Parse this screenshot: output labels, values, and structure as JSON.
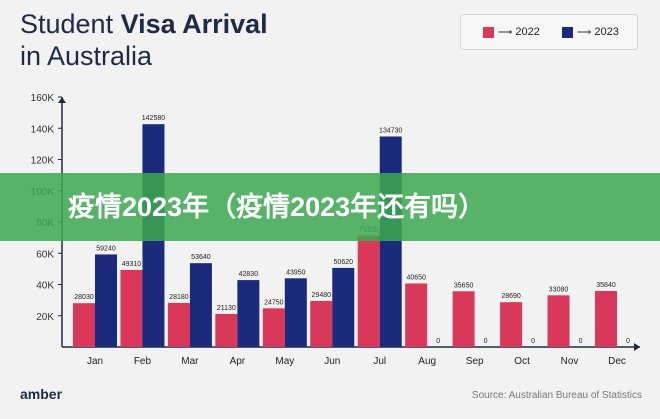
{
  "title": {
    "line1_regular": "Student ",
    "line1_bold": "Visa Arrival",
    "line2": "in Australia"
  },
  "legend": [
    {
      "label": "2022",
      "color": "#d9385b"
    },
    {
      "label": "2023",
      "color": "#1b2a7a"
    }
  ],
  "banner": {
    "text": "疫情2023年（疫情2023年还有吗）"
  },
  "footer": {
    "logo": "amber",
    "source": "Source: Australian Bureau of Statistics"
  },
  "chart_data": {
    "type": "bar",
    "categories": [
      "Jan",
      "Feb",
      "Mar",
      "Apr",
      "May",
      "Jun",
      "Jul",
      "Aug",
      "Sep",
      "Oct",
      "Nov",
      "Dec"
    ],
    "series": [
      {
        "name": "2022",
        "color": "#d9385b",
        "values": [
          28030,
          49310,
          28180,
          21130,
          24750,
          29480,
          71220,
          40650,
          35650,
          28690,
          33080,
          35840
        ]
      },
      {
        "name": "2023",
        "color": "#1b2a7a",
        "values": [
          59240,
          142580,
          53640,
          42830,
          43950,
          50620,
          134730,
          0,
          0,
          0,
          0,
          0
        ]
      }
    ],
    "yticks": [
      "20K",
      "40K",
      "60K",
      "80K",
      "100K",
      "120K",
      "140K",
      "160K"
    ],
    "ylim": [
      0,
      160000
    ]
  }
}
